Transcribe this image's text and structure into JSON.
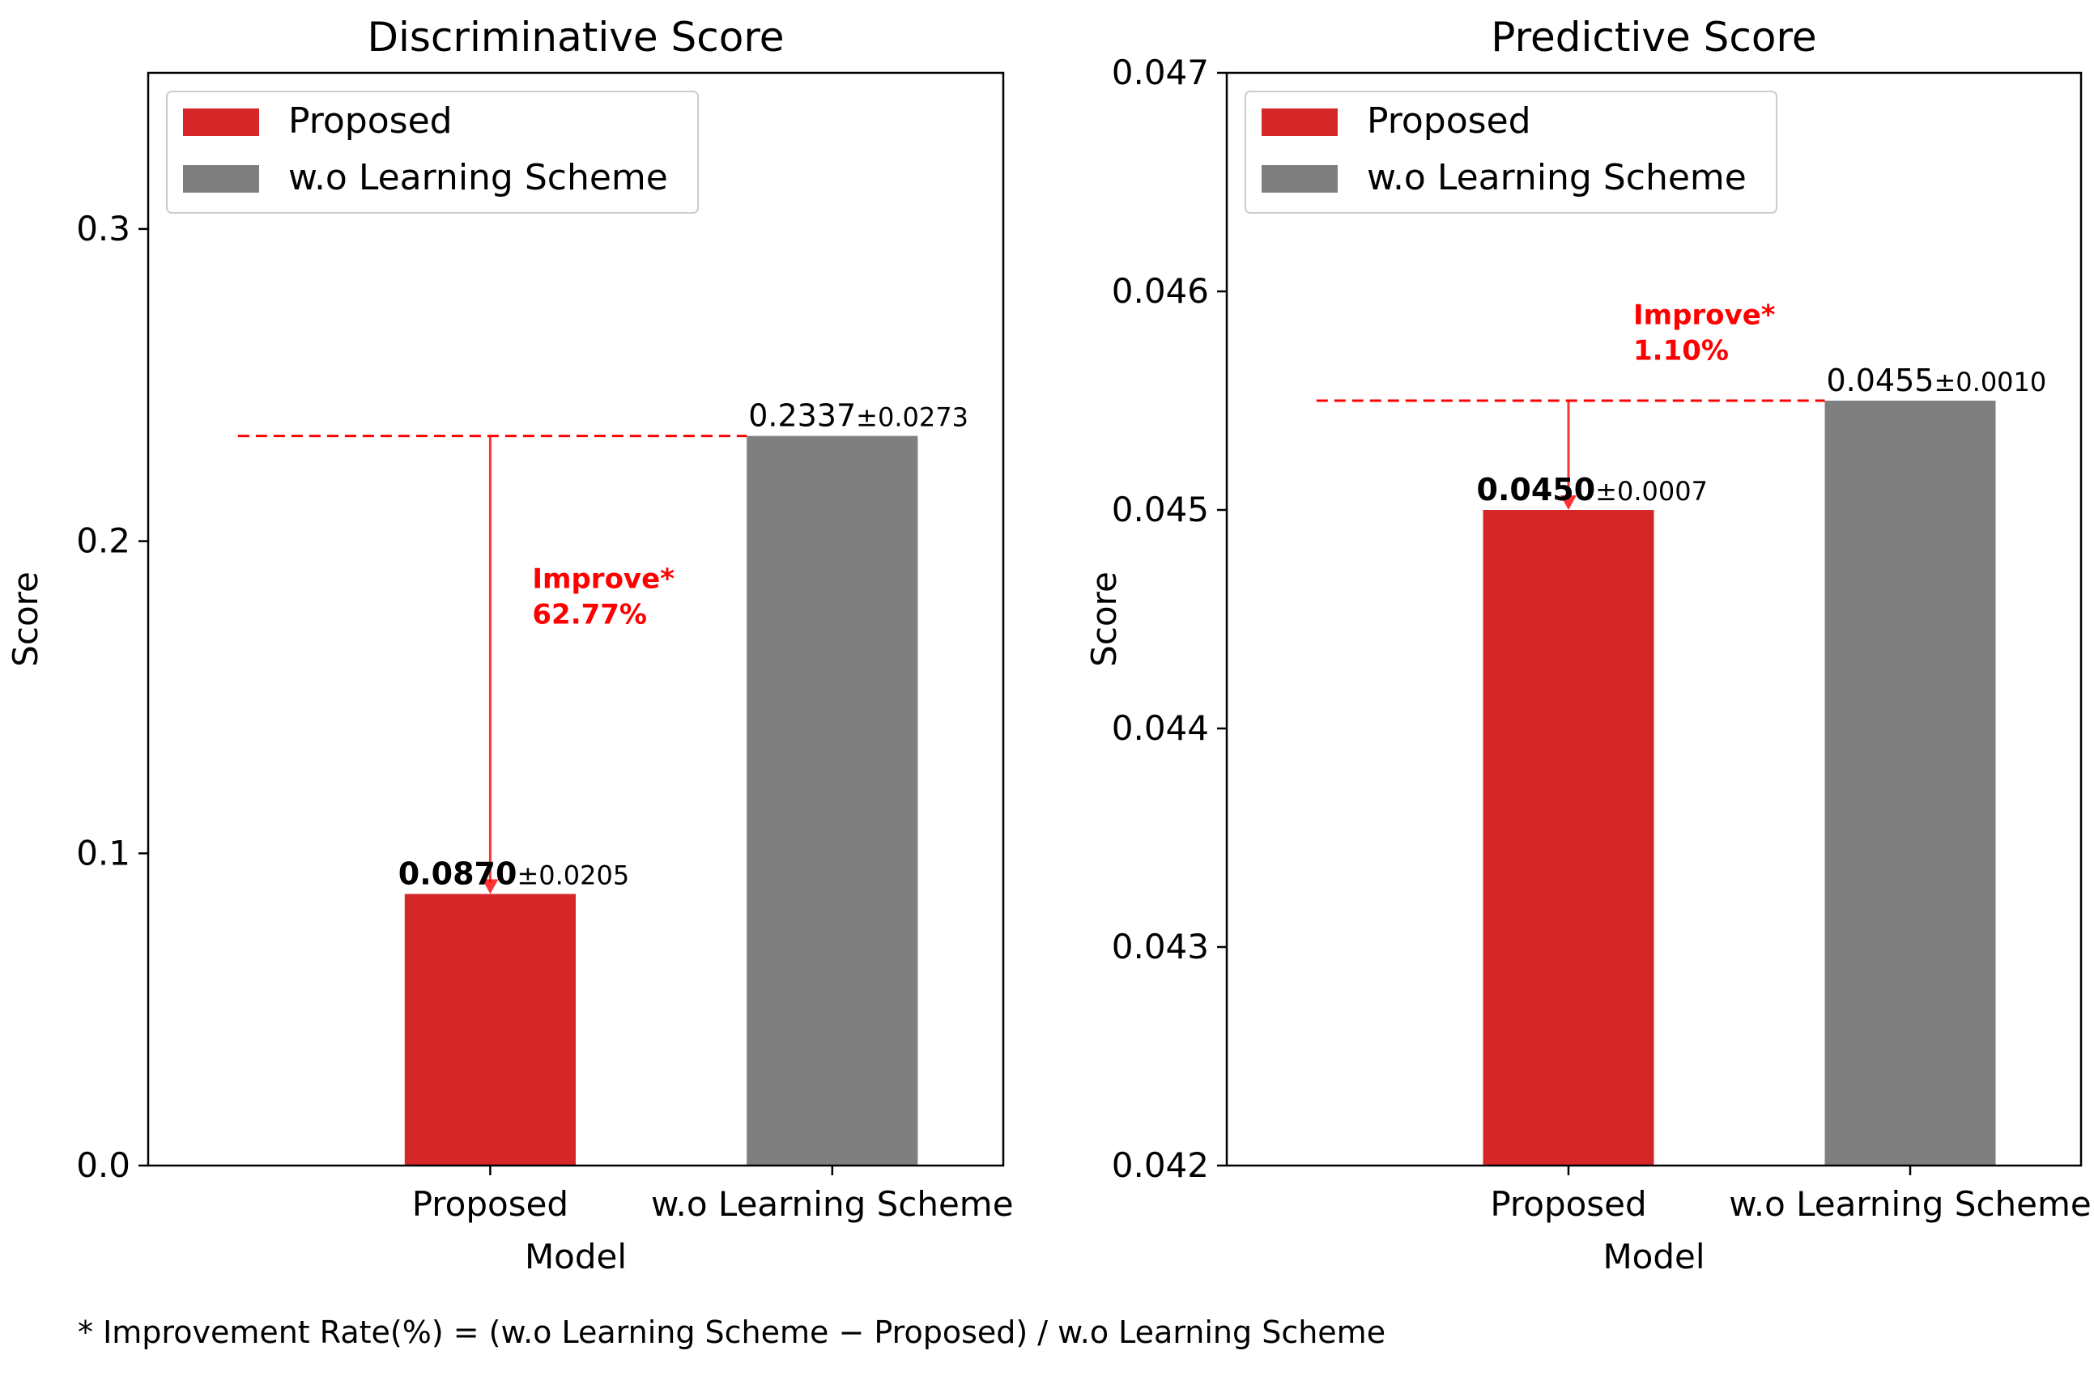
{
  "chart_data": [
    {
      "type": "bar",
      "title": "Discriminative Score",
      "xlabel": "Model",
      "ylabel": "Score",
      "ylim": [
        0,
        0.35
      ],
      "yticks": [
        0.0,
        0.1,
        0.2,
        0.3
      ],
      "ytick_labels": [
        "0.0",
        "0.1",
        "0.2",
        "0.3"
      ],
      "categories": [
        "Proposed",
        "w.o Learning Scheme"
      ],
      "values": [
        0.087,
        0.2337
      ],
      "errors": [
        0.0205,
        0.0273
      ],
      "value_labels": [
        "0.0870",
        "0.2337"
      ],
      "error_labels": [
        "±0.0205",
        "±0.0273"
      ],
      "bold_value": [
        true,
        false
      ],
      "colors": [
        "#d62728",
        "#7f7f7f"
      ],
      "legend": [
        "Proposed",
        "w.o Learning Scheme"
      ],
      "legend_position": "top-left",
      "annotation": {
        "line1": "Improve*",
        "line2": "62.77%",
        "color": "#ff0000",
        "from_value": 0.2337,
        "to_value": 0.087,
        "text_y_value": 0.185
      }
    },
    {
      "type": "bar",
      "title": "Predictive Score",
      "xlabel": "Model",
      "ylabel": "Score",
      "ylim": [
        0.042,
        0.047
      ],
      "yticks": [
        0.042,
        0.043,
        0.044,
        0.045,
        0.046,
        0.047
      ],
      "ytick_labels": [
        "0.042",
        "0.043",
        "0.044",
        "0.045",
        "0.046",
        "0.047"
      ],
      "categories": [
        "Proposed",
        "w.o Learning Scheme"
      ],
      "values": [
        0.045,
        0.0455
      ],
      "errors": [
        0.0007,
        0.001
      ],
      "value_labels": [
        "0.0450",
        "0.0455"
      ],
      "error_labels": [
        "±0.0007",
        "±0.0010"
      ],
      "bold_value": [
        true,
        false
      ],
      "colors": [
        "#d62728",
        "#7f7f7f"
      ],
      "legend": [
        "Proposed",
        "w.o Learning Scheme"
      ],
      "legend_position": "top-left",
      "annotation": {
        "line1": "Improve*",
        "line2": "1.10%",
        "color": "#ff0000",
        "from_value": 0.0455,
        "to_value": 0.045,
        "text_y_value": 0.04585
      }
    }
  ],
  "footnote": "* Improvement Rate(%) = (w.o Learning Scheme − Proposed) / w.o Learning Scheme"
}
